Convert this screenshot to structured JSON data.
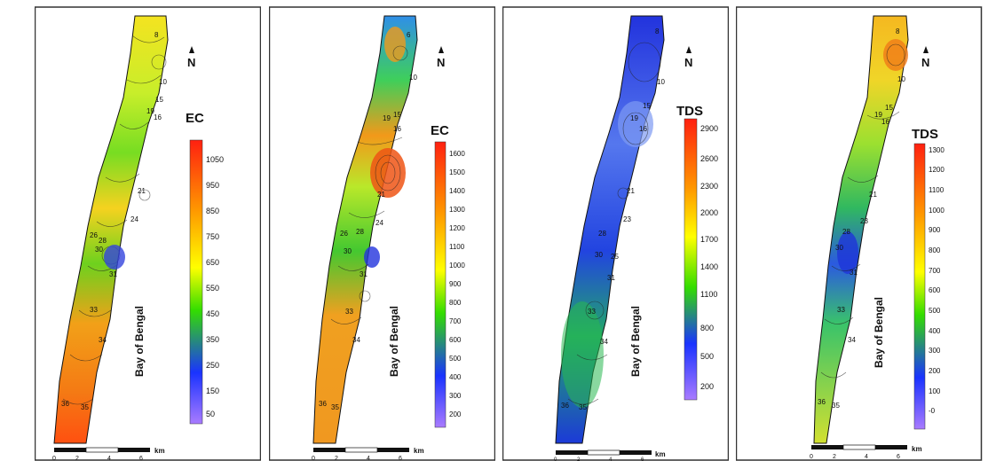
{
  "panels": [
    {
      "legend_title": "EC",
      "ticks": [
        "1050",
        "950",
        "850",
        "750",
        "650",
        "550",
        "450",
        "350",
        "250",
        "150",
        "50"
      ],
      "water_label": "Bay of Bengal",
      "north": "N",
      "scale_unit": "km",
      "scale_ticks": [
        "0",
        "2",
        "4",
        "6"
      ],
      "stations": [
        "8",
        "10",
        "15",
        "16",
        "19",
        "21",
        "24",
        "26",
        "28",
        "30",
        "31",
        "33",
        "34",
        "35",
        "36"
      ]
    },
    {
      "legend_title": "EC",
      "ticks": [
        "1600",
        "1500",
        "1400",
        "1300",
        "1200",
        "1100",
        "1000",
        "900",
        "800",
        "700",
        "600",
        "500",
        "400",
        "300",
        "200"
      ],
      "water_label": "Bay of Bengal",
      "north": "N",
      "scale_unit": "km",
      "scale_ticks": [
        "0",
        "2",
        "4",
        "6"
      ],
      "stations": [
        "6",
        "10",
        "15",
        "16",
        "19",
        "21",
        "24",
        "26",
        "28",
        "30",
        "31",
        "33",
        "34",
        "35",
        "36"
      ]
    },
    {
      "legend_title": "TDS",
      "ticks": [
        "2900",
        "2600",
        "2300",
        "2000",
        "1700",
        "1400",
        "1100",
        "800",
        "500",
        "200"
      ],
      "water_label": "Bay of Bengal",
      "north": "N",
      "scale_unit": "km",
      "scale_ticks": [
        "0",
        "2",
        "4",
        "6"
      ],
      "stations": [
        "8",
        "10",
        "15",
        "16",
        "19",
        "21",
        "23",
        "25",
        "28",
        "30",
        "31",
        "33",
        "34",
        "35",
        "36"
      ]
    },
    {
      "legend_title": "TDS",
      "ticks": [
        "1300",
        "1200",
        "1100",
        "1000",
        "900",
        "800",
        "700",
        "600",
        "500",
        "400",
        "300",
        "200",
        "100",
        "-0"
      ],
      "water_label": "Bay of Bengal",
      "north": "N",
      "scale_unit": "km",
      "scale_ticks": [
        "0",
        "2",
        "4",
        "6"
      ],
      "stations": [
        "8",
        "10",
        "15",
        "16",
        "19",
        "21",
        "23",
        "28",
        "30",
        "31",
        "33",
        "34",
        "35",
        "36"
      ]
    }
  ],
  "colors": {
    "legend_top": "#ff2010",
    "legend_mid_orange": "#ff9900",
    "legend_mid_yellow": "#ffff00",
    "legend_mid_green": "#33dd00",
    "legend_low_blue": "#1a33ff",
    "legend_bottom": "#a97bff"
  }
}
